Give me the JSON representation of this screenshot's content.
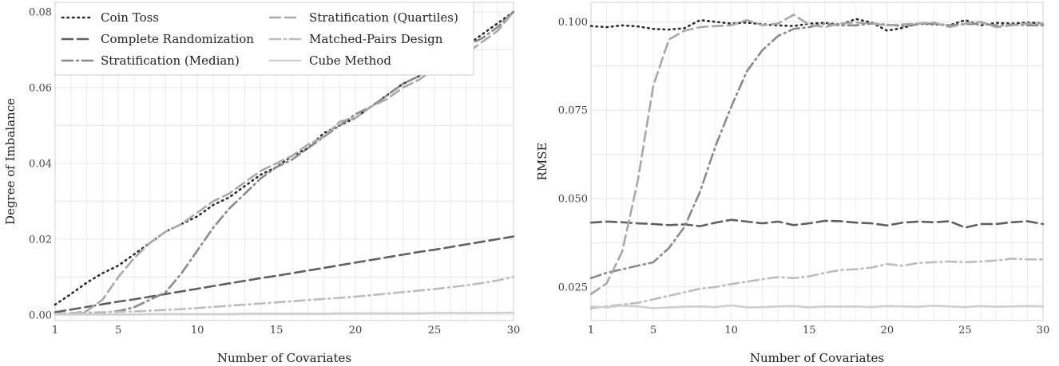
{
  "legend": {
    "entries": [
      "Coin Toss",
      "Complete Randomization",
      "Stratification (Median)",
      "Stratification (Quartiles)",
      "Matched-Pairs Design",
      "Cube Method"
    ]
  },
  "styles": {
    "Coin Toss": {
      "color": "#2b2b2b",
      "dash": "1.5 5",
      "width": 2.6
    },
    "Complete Randomization": {
      "color": "#606060",
      "dash": "13 6",
      "width": 2.6
    },
    "Stratification (Median)": {
      "color": "#8a8a8a",
      "dash": "13 5 2 5",
      "width": 2.6
    },
    "Stratification (Quartiles)": {
      "color": "#a8a8a8",
      "dash": "13 6",
      "width": 2.6
    },
    "Matched-Pairs Design": {
      "color": "#bdbdbd",
      "dash": "13 5 2 5",
      "width": 2.6
    },
    "Cube Method": {
      "color": "#cfcfcf",
      "dash": "",
      "width": 2.6
    }
  },
  "chart_data": [
    {
      "type": "line",
      "xlabel": "Number of Covariates",
      "ylabel": "Degree of Imbalance",
      "xlim": [
        1,
        30
      ],
      "ylim": [
        -0.0015,
        0.0825
      ],
      "xticks": [
        1,
        5,
        10,
        15,
        20,
        25,
        30
      ],
      "yticks": [
        0,
        0.02,
        0.04,
        0.06,
        0.08
      ],
      "ytick_labels": [
        "0.00",
        "0.02",
        "0.04",
        "0.06",
        "0.08"
      ],
      "grid": true,
      "legend_position": "top-left",
      "x": [
        1,
        2,
        3,
        4,
        5,
        6,
        7,
        8,
        9,
        10,
        11,
        12,
        13,
        14,
        15,
        16,
        17,
        18,
        19,
        20,
        21,
        22,
        23,
        24,
        25,
        26,
        27,
        28,
        29,
        30
      ],
      "series": [
        {
          "name": "Coin Toss",
          "values": [
            0.0027,
            0.0055,
            0.0085,
            0.011,
            0.013,
            0.016,
            0.019,
            0.022,
            0.024,
            0.026,
            0.029,
            0.031,
            0.034,
            0.037,
            0.039,
            0.042,
            0.044,
            0.048,
            0.05,
            0.052,
            0.055,
            0.058,
            0.061,
            0.063,
            0.066,
            0.068,
            0.071,
            0.074,
            0.077,
            0.08
          ]
        },
        {
          "name": "Complete Randomization",
          "values": [
            0.0007,
            0.0014,
            0.0021,
            0.0028,
            0.0035,
            0.0041,
            0.0048,
            0.0055,
            0.0062,
            0.0069,
            0.0076,
            0.0083,
            0.009,
            0.0097,
            0.0103,
            0.011,
            0.0117,
            0.0124,
            0.0131,
            0.0138,
            0.0145,
            0.0152,
            0.0159,
            0.0166,
            0.0172,
            0.0179,
            0.0186,
            0.0193,
            0.02,
            0.0207
          ]
        },
        {
          "name": "Stratification (Median)",
          "values": [
            0.0002,
            0.0003,
            0.0004,
            0.0006,
            0.001,
            0.002,
            0.004,
            0.006,
            0.011,
            0.017,
            0.023,
            0.028,
            0.032,
            0.036,
            0.039,
            0.041,
            0.044,
            0.047,
            0.05,
            0.053,
            0.055,
            0.058,
            0.061,
            0.063,
            0.066,
            0.068,
            0.071,
            0.073,
            0.076,
            0.08
          ]
        },
        {
          "name": "Stratification (Quartiles)",
          "values": [
            0.0002,
            0.0004,
            0.001,
            0.004,
            0.01,
            0.015,
            0.019,
            0.022,
            0.024,
            0.027,
            0.03,
            0.032,
            0.035,
            0.038,
            0.04,
            0.042,
            0.045,
            0.047,
            0.051,
            0.052,
            0.055,
            0.057,
            0.06,
            0.062,
            0.065,
            0.067,
            0.069,
            0.072,
            0.075,
            0.08
          ]
        },
        {
          "name": "Matched-Pairs Design",
          "values": [
            0.0003,
            0.0005,
            0.0006,
            0.0007,
            0.0008,
            0.0009,
            0.0011,
            0.0013,
            0.0015,
            0.0018,
            0.0021,
            0.0024,
            0.0027,
            0.003,
            0.0033,
            0.0036,
            0.0039,
            0.0042,
            0.0045,
            0.0048,
            0.0052,
            0.0056,
            0.006,
            0.0064,
            0.0068,
            0.0073,
            0.0078,
            0.0084,
            0.0091,
            0.01
          ]
        },
        {
          "name": "Cube Method",
          "values": [
            0.0001,
            0.0001,
            0.0001,
            0.0001,
            0.0001,
            0.0001,
            0.0002,
            0.0002,
            0.0002,
            0.0002,
            0.0002,
            0.0002,
            0.0003,
            0.0003,
            0.0003,
            0.0003,
            0.0003,
            0.0003,
            0.0004,
            0.0004,
            0.0004,
            0.0004,
            0.0004,
            0.0004,
            0.0005,
            0.0005,
            0.0005,
            0.0005,
            0.0005,
            0.0006
          ]
        }
      ]
    },
    {
      "type": "line",
      "xlabel": "Number of Covariates",
      "ylabel": "RMSE",
      "xlim": [
        1,
        30
      ],
      "ylim": [
        0.0155,
        0.1055
      ],
      "xticks": [
        1,
        5,
        10,
        15,
        20,
        25,
        30
      ],
      "yticks": [
        0.025,
        0.05,
        0.075,
        0.1
      ],
      "ytick_labels": [
        "0.025",
        "0.050",
        "0.075",
        "0.100"
      ],
      "grid": true,
      "x": [
        1,
        2,
        3,
        4,
        5,
        6,
        7,
        8,
        9,
        10,
        11,
        12,
        13,
        14,
        15,
        16,
        17,
        18,
        19,
        20,
        21,
        22,
        23,
        24,
        25,
        26,
        27,
        28,
        29,
        30
      ],
      "series": [
        {
          "name": "Coin Toss",
          "values": [
            0.0988,
            0.0985,
            0.099,
            0.0987,
            0.098,
            0.0978,
            0.0982,
            0.1005,
            0.1,
            0.0995,
            0.0998,
            0.0993,
            0.099,
            0.0988,
            0.0995,
            0.0997,
            0.0992,
            0.1008,
            0.0998,
            0.0975,
            0.0983,
            0.0995,
            0.0993,
            0.099,
            0.1005,
            0.099,
            0.0997,
            0.0995,
            0.0998,
            0.0996
          ]
        },
        {
          "name": "Complete Randomization",
          "values": [
            0.0432,
            0.0435,
            0.0433,
            0.043,
            0.0428,
            0.0425,
            0.0427,
            0.0422,
            0.0432,
            0.044,
            0.0435,
            0.043,
            0.0435,
            0.0425,
            0.043,
            0.0437,
            0.0436,
            0.0432,
            0.043,
            0.0424,
            0.0432,
            0.0435,
            0.0433,
            0.0436,
            0.0418,
            0.0428,
            0.0428,
            0.0433,
            0.0436,
            0.0428
          ]
        },
        {
          "name": "Stratification (Median)",
          "values": [
            0.0275,
            0.029,
            0.03,
            0.031,
            0.032,
            0.036,
            0.042,
            0.052,
            0.065,
            0.076,
            0.086,
            0.092,
            0.096,
            0.098,
            0.0985,
            0.0995,
            0.099,
            0.099,
            0.0995,
            0.0992,
            0.0988,
            0.0993,
            0.0995,
            0.099,
            0.0993,
            0.0995,
            0.099,
            0.0992,
            0.099,
            0.099
          ]
        },
        {
          "name": "Stratification (Quartiles)",
          "values": [
            0.023,
            0.026,
            0.035,
            0.055,
            0.082,
            0.095,
            0.0975,
            0.0985,
            0.0988,
            0.099,
            0.1005,
            0.099,
            0.0995,
            0.102,
            0.0992,
            0.0985,
            0.0995,
            0.0998,
            0.0995,
            0.099,
            0.0993,
            0.0995,
            0.0998,
            0.0985,
            0.0995,
            0.1,
            0.0985,
            0.099,
            0.0995,
            0.0995
          ]
        },
        {
          "name": "Matched-Pairs Design",
          "values": [
            0.019,
            0.0195,
            0.02,
            0.0205,
            0.0215,
            0.0225,
            0.0235,
            0.0245,
            0.025,
            0.0258,
            0.0265,
            0.0272,
            0.0278,
            0.0275,
            0.028,
            0.029,
            0.0298,
            0.03,
            0.0305,
            0.0315,
            0.031,
            0.0318,
            0.032,
            0.0322,
            0.032,
            0.0322,
            0.0325,
            0.033,
            0.0328,
            0.0328
          ]
        },
        {
          "name": "Cube Method",
          "values": [
            0.0195,
            0.0192,
            0.0197,
            0.0195,
            0.019,
            0.0192,
            0.0194,
            0.0195,
            0.0193,
            0.0198,
            0.0192,
            0.0193,
            0.0195,
            0.0196,
            0.0192,
            0.0195,
            0.0194,
            0.0195,
            0.0193,
            0.0196,
            0.0195,
            0.0194,
            0.0197,
            0.0195,
            0.0193,
            0.0196,
            0.0194,
            0.0195,
            0.0196,
            0.0195
          ]
        }
      ]
    }
  ]
}
